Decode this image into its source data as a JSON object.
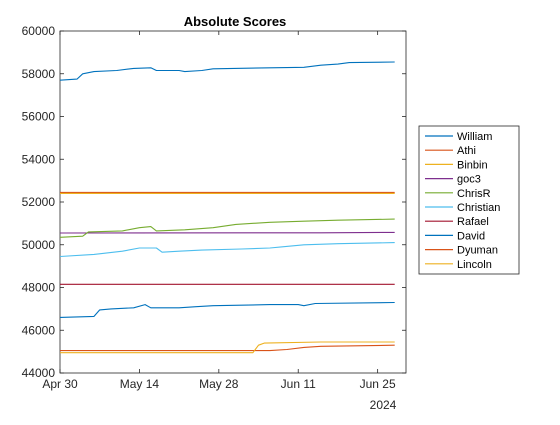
{
  "chart_data": {
    "type": "line",
    "title": "Absolute Scores",
    "xlabel": "",
    "ylabel": "",
    "ylim": [
      44000,
      60000
    ],
    "xlim": [
      "2024-04-30",
      "2024-06-30"
    ],
    "yticks": [
      44000,
      46000,
      48000,
      50000,
      52000,
      54000,
      56000,
      58000,
      60000
    ],
    "xticks": [
      {
        "date": "2024-04-30",
        "label": "Apr 30"
      },
      {
        "date": "2024-05-14",
        "label": "May 14"
      },
      {
        "date": "2024-05-28",
        "label": "May 28"
      },
      {
        "date": "2024-06-11",
        "label": "Jun 11"
      },
      {
        "date": "2024-06-25",
        "label": "Jun 25"
      }
    ],
    "year_label": "2024",
    "grid": false,
    "legend_position": "right",
    "series": [
      {
        "name": "William",
        "color": "#0072BD",
        "points": [
          [
            "2024-04-30",
            57700
          ],
          [
            "2024-05-03",
            57750
          ],
          [
            "2024-05-04",
            58000
          ],
          [
            "2024-05-06",
            58100
          ],
          [
            "2024-05-10",
            58150
          ],
          [
            "2024-05-13",
            58250
          ],
          [
            "2024-05-16",
            58280
          ],
          [
            "2024-05-17",
            58150
          ],
          [
            "2024-05-21",
            58150
          ],
          [
            "2024-05-22",
            58100
          ],
          [
            "2024-05-25",
            58150
          ],
          [
            "2024-05-27",
            58230
          ],
          [
            "2024-06-06",
            58280
          ],
          [
            "2024-06-12",
            58300
          ],
          [
            "2024-06-15",
            58400
          ],
          [
            "2024-06-18",
            58450
          ],
          [
            "2024-06-20",
            58520
          ],
          [
            "2024-06-28",
            58550
          ]
        ]
      },
      {
        "name": "Athi",
        "color": "#D95319",
        "points": [
          [
            "2024-04-30",
            52450
          ],
          [
            "2024-06-28",
            52450
          ]
        ]
      },
      {
        "name": "Binbin",
        "color": "#EDB120",
        "points": [
          [
            "2024-04-30",
            52400
          ],
          [
            "2024-06-28",
            52400
          ]
        ]
      },
      {
        "name": "goc3",
        "color": "#7E2F8E",
        "points": [
          [
            "2024-04-30",
            50550
          ],
          [
            "2024-06-15",
            50560
          ],
          [
            "2024-06-28",
            50580
          ]
        ]
      },
      {
        "name": "ChrisR",
        "color": "#77AC30",
        "points": [
          [
            "2024-04-30",
            50350
          ],
          [
            "2024-05-04",
            50400
          ],
          [
            "2024-05-05",
            50600
          ],
          [
            "2024-05-11",
            50650
          ],
          [
            "2024-05-14",
            50800
          ],
          [
            "2024-05-16",
            50850
          ],
          [
            "2024-05-17",
            50650
          ],
          [
            "2024-05-22",
            50700
          ],
          [
            "2024-05-27",
            50800
          ],
          [
            "2024-05-31",
            50950
          ],
          [
            "2024-06-06",
            51050
          ],
          [
            "2024-06-12",
            51100
          ],
          [
            "2024-06-18",
            51150
          ],
          [
            "2024-06-28",
            51200
          ]
        ]
      },
      {
        "name": "Christian",
        "color": "#4DBEEE",
        "points": [
          [
            "2024-04-30",
            49450
          ],
          [
            "2024-05-06",
            49550
          ],
          [
            "2024-05-11",
            49700
          ],
          [
            "2024-05-14",
            49850
          ],
          [
            "2024-05-17",
            49850
          ],
          [
            "2024-05-18",
            49650
          ],
          [
            "2024-05-21",
            49700
          ],
          [
            "2024-05-25",
            49750
          ],
          [
            "2024-06-01",
            49800
          ],
          [
            "2024-06-06",
            49850
          ],
          [
            "2024-06-08",
            49900
          ],
          [
            "2024-06-12",
            50000
          ],
          [
            "2024-06-18",
            50050
          ],
          [
            "2024-06-28",
            50100
          ]
        ]
      },
      {
        "name": "Rafael",
        "color": "#A2142F",
        "points": [
          [
            "2024-04-30",
            48150
          ],
          [
            "2024-06-28",
            48150
          ]
        ]
      },
      {
        "name": "David",
        "color": "#0072BD",
        "points": [
          [
            "2024-04-30",
            46600
          ],
          [
            "2024-05-06",
            46650
          ],
          [
            "2024-05-07",
            46950
          ],
          [
            "2024-05-09",
            47000
          ],
          [
            "2024-05-13",
            47050
          ],
          [
            "2024-05-15",
            47200
          ],
          [
            "2024-05-16",
            47050
          ],
          [
            "2024-05-21",
            47050
          ],
          [
            "2024-05-24",
            47100
          ],
          [
            "2024-05-27",
            47150
          ],
          [
            "2024-06-06",
            47200
          ],
          [
            "2024-06-11",
            47200
          ],
          [
            "2024-06-12",
            47150
          ],
          [
            "2024-06-14",
            47250
          ],
          [
            "2024-06-28",
            47300
          ]
        ]
      },
      {
        "name": "Dyuman",
        "color": "#D95319",
        "points": [
          [
            "2024-04-30",
            45050
          ],
          [
            "2024-06-06",
            45050
          ],
          [
            "2024-06-09",
            45100
          ],
          [
            "2024-06-12",
            45200
          ],
          [
            "2024-06-15",
            45250
          ],
          [
            "2024-06-28",
            45300
          ]
        ]
      },
      {
        "name": "Lincoln",
        "color": "#EDB120",
        "points": [
          [
            "2024-04-30",
            44950
          ],
          [
            "2024-06-03",
            44950
          ],
          [
            "2024-06-04",
            45300
          ],
          [
            "2024-06-05",
            45400
          ],
          [
            "2024-06-15",
            45450
          ],
          [
            "2024-06-28",
            45450
          ]
        ]
      }
    ]
  }
}
